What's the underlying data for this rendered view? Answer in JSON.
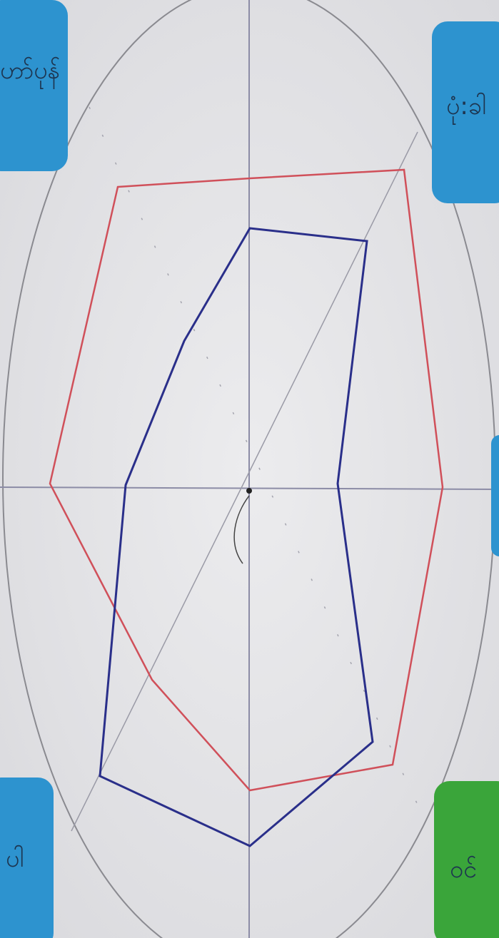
{
  "labels": {
    "top_left": "ဟာ်ပုန်",
    "top_right": "ပုံ:ခါ",
    "bottom_left": "ပါ",
    "bottom_right": "ဝင်"
  }
}
